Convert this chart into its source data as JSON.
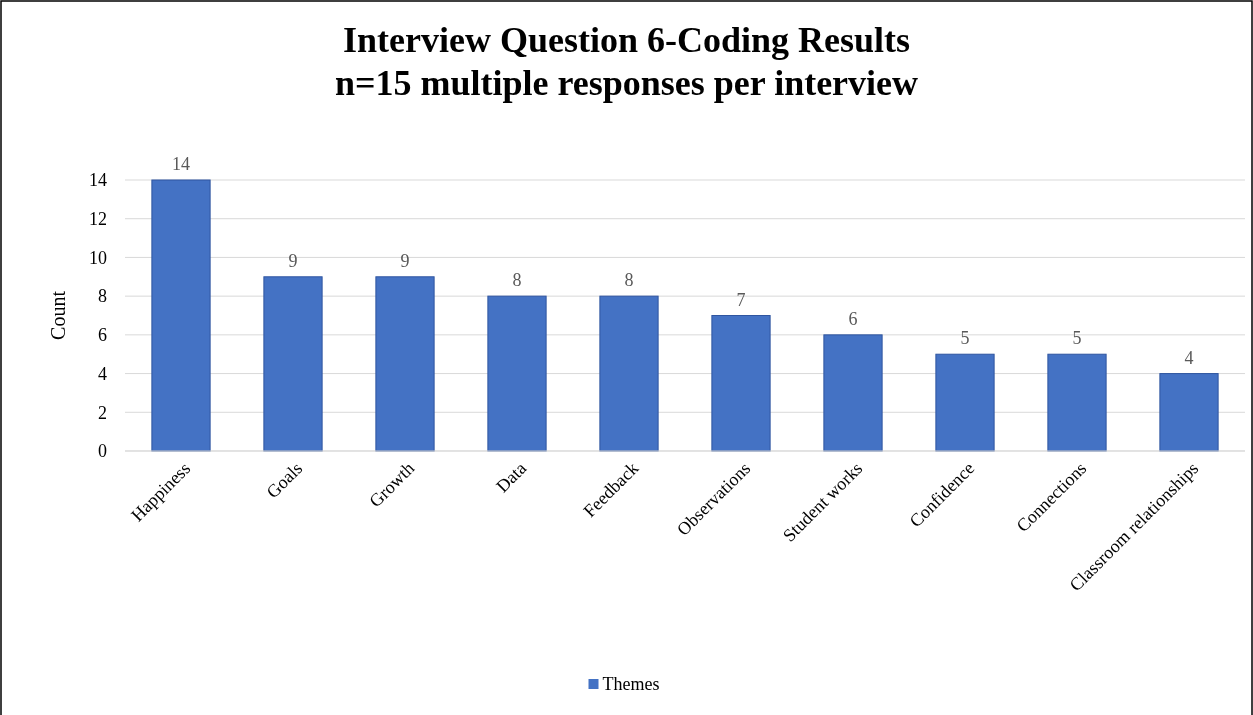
{
  "chart_data": {
    "type": "bar",
    "title": "Interview Question 6-Coding Results",
    "subtitle": "n=15 multiple responses per interview",
    "ylabel": "Count",
    "categories": [
      "Happiness",
      "Goals",
      "Growth",
      "Data",
      "Feedback",
      "Observations",
      "Student works",
      "Confidence",
      "Connections",
      "Classroom relationships"
    ],
    "series": [
      {
        "name": "Themes",
        "color": "#4472c4",
        "values": [
          14,
          9,
          9,
          8,
          8,
          7,
          6,
          5,
          5,
          4
        ]
      }
    ],
    "ylim": [
      0,
      14
    ],
    "yticks": [
      0,
      2,
      4,
      6,
      8,
      10,
      12,
      14
    ],
    "grid": "y",
    "legend": "bottom",
    "data_labels": true
  }
}
